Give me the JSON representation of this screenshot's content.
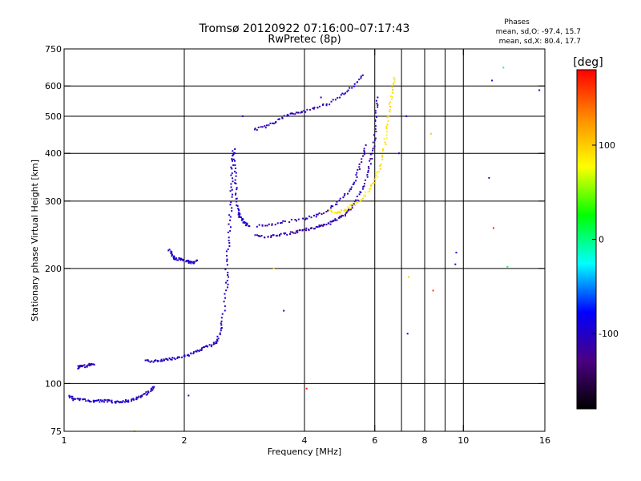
{
  "chart_data": {
    "type": "scatter",
    "title": "Tromsø 20120922 07:16:00–07:17:43",
    "subtitle": "RwPretec (8p)",
    "xlabel": "Frequency [MHz]",
    "ylabel": "Stationary phase Virtual Height [km]",
    "x_scale": "log",
    "y_scale": "log",
    "xlim": [
      1,
      16
    ],
    "ylim": [
      75,
      750
    ],
    "x_ticks": [
      1,
      2,
      4,
      6,
      8,
      10,
      16
    ],
    "x_gridlines": [
      2,
      4,
      6,
      7,
      8,
      9,
      10
    ],
    "y_ticks": [
      75,
      100,
      200,
      300,
      400,
      500,
      600,
      750
    ],
    "y_gridlines": [
      100,
      200,
      300,
      400,
      500,
      600
    ],
    "grid": true,
    "phase_box": {
      "title": "Phases",
      "line_o": "mean, sd,O: -97.4, 15.7",
      "line_x": "mean, sd,X:  80.4, 17.7"
    },
    "colorbar": {
      "label": "[deg]",
      "min": -180,
      "max": 180,
      "ticks": [
        100,
        0,
        -100
      ],
      "colors": [
        "#ff0000",
        "#ff8c00",
        "#ffff00",
        "#00ff00",
        "#00ffff",
        "#0000ff",
        "#4b0082",
        "#000000"
      ]
    },
    "traces": [
      {
        "mode": "O",
        "phase": -100,
        "points": [
          [
            1.03,
            93
          ],
          [
            1.06,
            91
          ],
          [
            1.1,
            91
          ],
          [
            1.15,
            90
          ],
          [
            1.2,
            90
          ],
          [
            1.25,
            90
          ],
          [
            1.3,
            90
          ],
          [
            1.35,
            89
          ],
          [
            1.4,
            90
          ],
          [
            1.45,
            90
          ],
          [
            1.5,
            91
          ],
          [
            1.55,
            92
          ],
          [
            1.6,
            94
          ],
          [
            1.65,
            96
          ],
          [
            1.68,
            98
          ]
        ]
      },
      {
        "mode": "O",
        "phase": -100,
        "points": [
          [
            1.08,
            110
          ],
          [
            1.1,
            111
          ],
          [
            1.13,
            111
          ],
          [
            1.16,
            112
          ],
          [
            1.19,
            112
          ]
        ]
      },
      {
        "mode": "O",
        "phase": -100,
        "points": [
          [
            1.6,
            115
          ],
          [
            1.68,
            114
          ],
          [
            1.75,
            115
          ],
          [
            1.82,
            116
          ],
          [
            1.9,
            116
          ],
          [
            2.0,
            118
          ],
          [
            2.1,
            120
          ],
          [
            2.2,
            123
          ],
          [
            2.3,
            125
          ],
          [
            2.4,
            128
          ],
          [
            2.45,
            135
          ],
          [
            2.5,
            148
          ],
          [
            2.55,
            175
          ],
          [
            2.57,
            195
          ]
        ]
      },
      {
        "mode": "O",
        "phase": -100,
        "points": [
          [
            1.83,
            225
          ],
          [
            1.87,
            215
          ],
          [
            1.9,
            212
          ],
          [
            1.95,
            211
          ],
          [
            2.0,
            210
          ],
          [
            2.05,
            208
          ],
          [
            2.1,
            207
          ],
          [
            2.15,
            210
          ]
        ]
      },
      {
        "mode": "O",
        "phase": -100,
        "points": [
          [
            2.55,
            200
          ],
          [
            2.58,
            230
          ],
          [
            2.6,
            260
          ],
          [
            2.62,
            300
          ],
          [
            2.63,
            340
          ],
          [
            2.64,
            380
          ],
          [
            2.66,
            410
          ],
          [
            2.68,
            360
          ],
          [
            2.7,
            320
          ],
          [
            2.72,
            290
          ],
          [
            2.75,
            275
          ],
          [
            2.8,
            268
          ],
          [
            2.85,
            262
          ],
          [
            2.9,
            258
          ]
        ]
      },
      {
        "mode": "O",
        "phase": -110,
        "points": [
          [
            3.0,
            245
          ],
          [
            3.2,
            242
          ],
          [
            3.4,
            243
          ],
          [
            3.6,
            246
          ],
          [
            3.8,
            249
          ],
          [
            4.0,
            252
          ],
          [
            4.2,
            255
          ],
          [
            4.4,
            258
          ],
          [
            4.6,
            262
          ],
          [
            4.8,
            268
          ],
          [
            5.0,
            275
          ],
          [
            5.2,
            285
          ],
          [
            5.4,
            300
          ],
          [
            5.6,
            325
          ],
          [
            5.8,
            360
          ],
          [
            5.9,
            395
          ],
          [
            6.0,
            440
          ],
          [
            6.05,
            500
          ],
          [
            6.1,
            560
          ]
        ]
      },
      {
        "mode": "O",
        "phase": -110,
        "points": [
          [
            3.05,
            258
          ],
          [
            3.3,
            260
          ],
          [
            3.6,
            265
          ],
          [
            4.0,
            270
          ],
          [
            4.3,
            275
          ],
          [
            4.6,
            285
          ],
          [
            4.9,
            300
          ],
          [
            5.2,
            320
          ],
          [
            5.4,
            345
          ],
          [
            5.55,
            380
          ],
          [
            5.7,
            420
          ]
        ]
      },
      {
        "mode": "O",
        "phase": -105,
        "points": [
          [
            3.0,
            460
          ],
          [
            3.2,
            470
          ],
          [
            3.4,
            485
          ],
          [
            3.6,
            500
          ],
          [
            3.8,
            510
          ],
          [
            4.0,
            515
          ],
          [
            4.3,
            525
          ],
          [
            4.6,
            540
          ],
          [
            5.0,
            570
          ],
          [
            5.3,
            600
          ],
          [
            5.6,
            640
          ]
        ]
      },
      {
        "mode": "X",
        "phase": 90,
        "points": [
          [
            4.6,
            285
          ],
          [
            4.8,
            280
          ],
          [
            5.0,
            282
          ],
          [
            5.2,
            290
          ],
          [
            5.5,
            300
          ],
          [
            5.8,
            320
          ],
          [
            6.0,
            340
          ],
          [
            6.2,
            370
          ],
          [
            6.35,
            420
          ],
          [
            6.45,
            470
          ],
          [
            6.55,
            530
          ],
          [
            6.65,
            580
          ],
          [
            6.7,
            630
          ]
        ]
      }
    ],
    "scatter_points": [
      {
        "x": 1.5,
        "y": 75,
        "phase": 100
      },
      {
        "x": 2.05,
        "y": 93,
        "phase": -100
      },
      {
        "x": 2.8,
        "y": 500,
        "phase": -100
      },
      {
        "x": 3.35,
        "y": 200,
        "phase": 100
      },
      {
        "x": 3.55,
        "y": 155,
        "phase": -100
      },
      {
        "x": 4.05,
        "y": 97,
        "phase": 170
      },
      {
        "x": 4.4,
        "y": 560,
        "phase": -100
      },
      {
        "x": 6.9,
        "y": 400,
        "phase": -100
      },
      {
        "x": 7.2,
        "y": 500,
        "phase": -100
      },
      {
        "x": 7.25,
        "y": 135,
        "phase": -100
      },
      {
        "x": 7.3,
        "y": 190,
        "phase": 100
      },
      {
        "x": 8.3,
        "y": 450,
        "phase": 100
      },
      {
        "x": 8.4,
        "y": 175,
        "phase": 160
      },
      {
        "x": 9.6,
        "y": 220,
        "phase": -100
      },
      {
        "x": 9.55,
        "y": 205,
        "phase": -100
      },
      {
        "x": 11.6,
        "y": 345,
        "phase": -100
      },
      {
        "x": 11.8,
        "y": 620,
        "phase": -100
      },
      {
        "x": 11.9,
        "y": 255,
        "phase": 170
      },
      {
        "x": 12.6,
        "y": 670,
        "phase": 0
      },
      {
        "x": 12.9,
        "y": 202,
        "phase": 10
      },
      {
        "x": 15.5,
        "y": 585,
        "phase": -100
      }
    ]
  }
}
